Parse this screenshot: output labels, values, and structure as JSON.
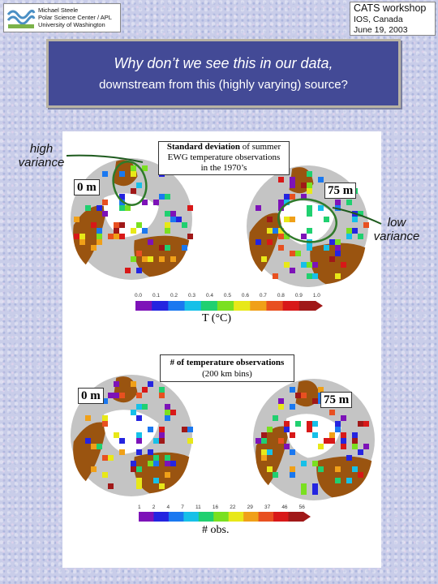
{
  "header": {
    "author_lines": [
      "Michael Steele",
      "Polar Science Center / APL",
      "University of Washington"
    ],
    "workshop_lines": [
      "CATS workshop",
      "IOS, Canada",
      "June 19, 2003"
    ]
  },
  "slide": {
    "title_line1": "Why don’t we see this in our data,",
    "title_line2": "downstream from this (highly varying) source?"
  },
  "annotations": {
    "high": [
      "high",
      "variance"
    ],
    "low": [
      "low",
      "variance"
    ]
  },
  "figure": {
    "top_panel": {
      "title_bold": "Standard deviation",
      "title_rest": " of summer",
      "title_line2": "EWG temperature observations",
      "title_line3": "in the 1970’s",
      "depth_left": "0 m",
      "depth_right": "75 m",
      "colorbar_ticks": [
        "0.0",
        "0.1",
        "0.2",
        "0.3",
        "0.4",
        "0.5",
        "0.6",
        "0.7",
        "0.8",
        "0.9",
        "1.0"
      ],
      "colorbar_label": "T (°C)"
    },
    "bottom_panel": {
      "title_line1": "# of temperature observations",
      "title_line2": "(200 km bins)",
      "depth_left": "0 m",
      "depth_right": "75 m",
      "colorbar_ticks": [
        "1",
        "2",
        "4",
        "7",
        "11",
        "16",
        "22",
        "29",
        "37",
        "46",
        "56"
      ],
      "colorbar_label": "# obs."
    }
  },
  "colors": {
    "title_box": "#434a96",
    "land": "#9a5410",
    "globe": "#c4c4c4",
    "annotation_circle": "#2f7a2a",
    "colorbar": [
      "#7d12b8",
      "#2424e0",
      "#1a78f0",
      "#16c0e8",
      "#20d070",
      "#7ae020",
      "#e8e818",
      "#f0a018",
      "#e85020",
      "#d81818",
      "#a01818"
    ]
  }
}
